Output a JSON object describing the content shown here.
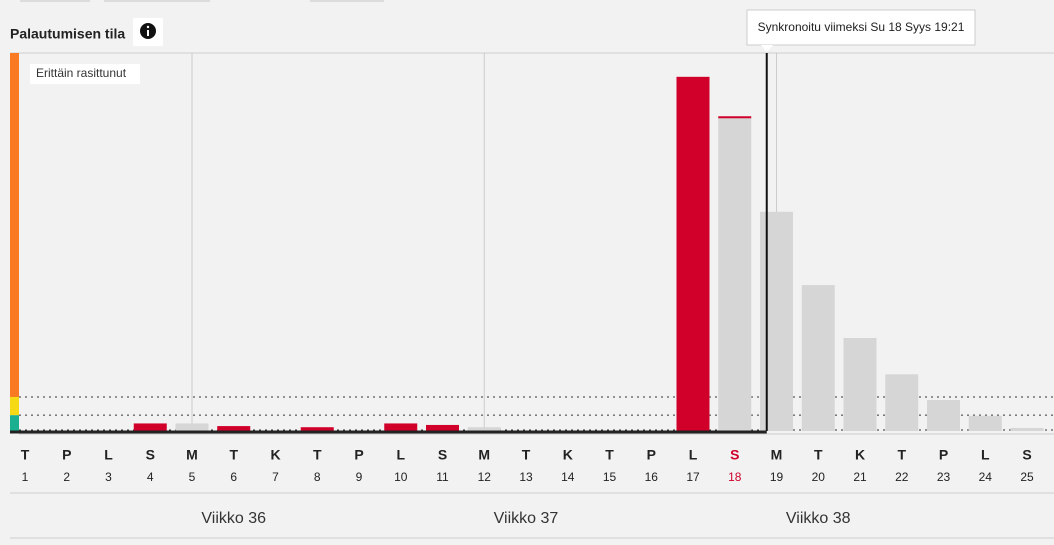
{
  "chart_data": {
    "type": "bar",
    "title": "Palautumisen tila",
    "zone_label": "Erittäin rasittunut",
    "tooltip": "Synkronoitu viimeksi Su 18 Syys 19:21",
    "categories": [
      "1",
      "2",
      "3",
      "4",
      "5",
      "6",
      "7",
      "8",
      "9",
      "10",
      "11",
      "12",
      "13",
      "14",
      "15",
      "16",
      "17",
      "18",
      "19",
      "20",
      "21",
      "22",
      "23",
      "24",
      "25"
    ],
    "weekdays": [
      "T",
      "P",
      "L",
      "S",
      "M",
      "T",
      "K",
      "T",
      "P",
      "L",
      "S",
      "M",
      "T",
      "K",
      "T",
      "P",
      "L",
      "S",
      "M",
      "T",
      "K",
      "T",
      "P",
      "L",
      "S"
    ],
    "highlight_index": 17,
    "highlight_color": "#d0002b",
    "weeks": [
      "Viikko 36",
      "Viikko 37",
      "Viikko 38"
    ],
    "ylim": [
      0,
      100
    ],
    "zone_limits": [
      4.2,
      9
    ],
    "zone_colors": [
      "#1aaf8f",
      "#f5d915",
      "#f97a22"
    ],
    "series": [
      {
        "color": "#d0002b",
        "values": [
          null,
          null,
          null,
          2,
          null,
          1.3,
          null,
          1,
          null,
          2,
          1.6,
          null,
          null,
          null,
          null,
          null,
          93.7,
          null,
          null,
          null,
          null,
          null,
          null,
          null,
          null
        ]
      },
      {
        "color": "#d6d6d6",
        "values": [
          null,
          null,
          null,
          null,
          2,
          null,
          null,
          null,
          null,
          null,
          null,
          1,
          null,
          null,
          null,
          null,
          null,
          83,
          58,
          38.6,
          24.6,
          15,
          8.2,
          4,
          0.8
        ]
      }
    ]
  }
}
